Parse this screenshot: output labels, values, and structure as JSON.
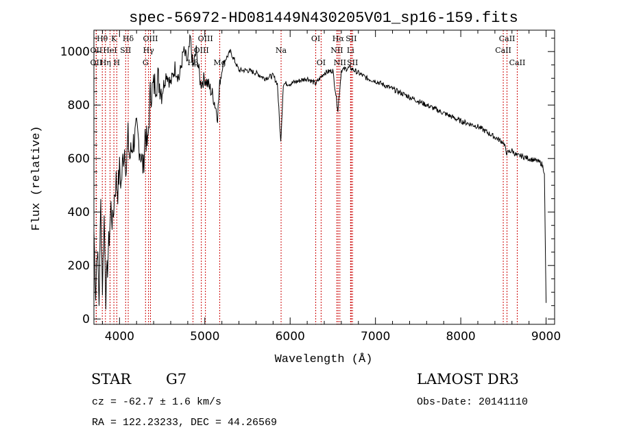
{
  "chart_data": {
    "type": "line",
    "title": "spec-56972-HD081449N430205V01_sp16-159.fits",
    "xlabel": "Wavelength (Å)",
    "ylabel": "Flux (relative)",
    "xlim": [
      3700,
      9100
    ],
    "ylim": [
      -20,
      1080
    ],
    "x_ticks": [
      4000,
      5000,
      6000,
      7000,
      8000,
      9000
    ],
    "y_ticks": [
      0,
      200,
      400,
      600,
      800,
      1000
    ],
    "grid": false,
    "series": [
      {
        "x": [
          3700,
          3720,
          3740,
          3760,
          3780,
          3800,
          3820,
          3840,
          3860,
          3880,
          3900,
          3920,
          3940,
          3960,
          3980,
          4000,
          4020,
          4040,
          4060,
          4080,
          4100,
          4120,
          4150,
          4200,
          4250,
          4280,
          4300,
          4330,
          4360,
          4400,
          4450,
          4500,
          4550,
          4600,
          4650,
          4700,
          4750,
          4800,
          4830,
          4860,
          4900,
          4950,
          5000,
          5050,
          5100,
          5150,
          5180,
          5220,
          5300,
          5400,
          5500,
          5600,
          5700,
          5800,
          5850,
          5890,
          5920,
          6000,
          6100,
          6200,
          6300,
          6400,
          6500,
          6560,
          6600,
          6700,
          6800,
          6900,
          7000,
          7200,
          7400,
          7600,
          7800,
          8000,
          8200,
          8400,
          8500,
          8540,
          8600,
          8660,
          8700,
          8800,
          8900,
          8950,
          8980,
          8990,
          9000
        ],
        "y": [
          330,
          100,
          280,
          60,
          430,
          120,
          380,
          90,
          200,
          310,
          420,
          350,
          460,
          520,
          480,
          560,
          500,
          600,
          640,
          560,
          680,
          600,
          650,
          700,
          620,
          560,
          700,
          640,
          840,
          870,
          900,
          850,
          920,
          880,
          940,
          900,
          1000,
          960,
          1050,
          940,
          1000,
          880,
          900,
          870,
          830,
          760,
          900,
          960,
          1000,
          930,
          930,
          920,
          900,
          910,
          880,
          660,
          880,
          880,
          890,
          900,
          880,
          920,
          930,
          780,
          930,
          940,
          920,
          900,
          890,
          860,
          830,
          800,
          770,
          740,
          720,
          680,
          660,
          620,
          630,
          610,
          610,
          600,
          590,
          580,
          550,
          300,
          60
        ]
      }
    ],
    "line_markers": [
      {
        "label": "Hθ",
        "x": 3798,
        "row": 0
      },
      {
        "label": "OII",
        "x": 3727,
        "row": 1
      },
      {
        "label": "OII",
        "x": 3727,
        "row": 2
      },
      {
        "label": "Hη",
        "x": 3835,
        "row": 2
      },
      {
        "label": "K",
        "x": 3934,
        "row": 0
      },
      {
        "label": "HeI",
        "x": 3889,
        "row": 1
      },
      {
        "label": "H",
        "x": 3968,
        "row": 2
      },
      {
        "label": "Hδ",
        "x": 4102,
        "row": 0
      },
      {
        "label": "SII",
        "x": 4072,
        "row": 1
      },
      {
        "label": "OIII",
        "x": 4363,
        "row": 0
      },
      {
        "label": "Hγ",
        "x": 4340,
        "row": 1
      },
      {
        "label": "G",
        "x": 4305,
        "row": 2
      },
      {
        "label": "OIII",
        "x": 5007,
        "row": 0
      },
      {
        "label": "OIII",
        "x": 4959,
        "row": 1
      },
      {
        "label": "Hβ",
        "x": 4861,
        "row": 2
      },
      {
        "label": "Mg",
        "x": 5175,
        "row": 2
      },
      {
        "label": "Na",
        "x": 5894,
        "row": 1
      },
      {
        "label": "OI",
        "x": 6300,
        "row": 0
      },
      {
        "label": "OI",
        "x": 6363,
        "row": 2
      },
      {
        "label": "Hα",
        "x": 6563,
        "row": 0
      },
      {
        "label": "NII",
        "x": 6548,
        "row": 1
      },
      {
        "label": "NII",
        "x": 6583,
        "row": 2
      },
      {
        "label": "SII",
        "x": 6716,
        "row": 0
      },
      {
        "label": "Li",
        "x": 6708,
        "row": 1
      },
      {
        "label": "SII",
        "x": 6731,
        "row": 2
      },
      {
        "label": "CaII",
        "x": 8542,
        "row": 0
      },
      {
        "label": "CaII",
        "x": 8498,
        "row": 1
      },
      {
        "label": "CaII",
        "x": 8662,
        "row": 2
      }
    ]
  },
  "info": {
    "object_class": "STAR",
    "subclass": "G7",
    "survey": "LAMOST DR3",
    "velocity": "cz = -62.7 ± 1.6 km/s",
    "obs_date": "Obs-Date: 20141110",
    "coordinates": "RA = 122.23233, DEC =  44.26569"
  }
}
